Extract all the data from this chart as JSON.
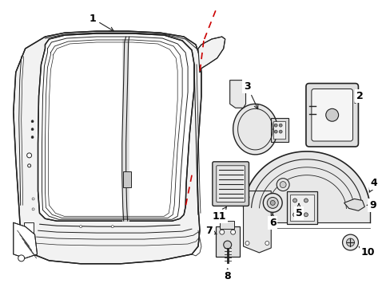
{
  "background_color": "#ffffff",
  "line_color": "#222222",
  "red_dash_color": "#cc0000",
  "label_color": "#000000",
  "figsize": [
    4.89,
    3.6
  ],
  "dpi": 100
}
